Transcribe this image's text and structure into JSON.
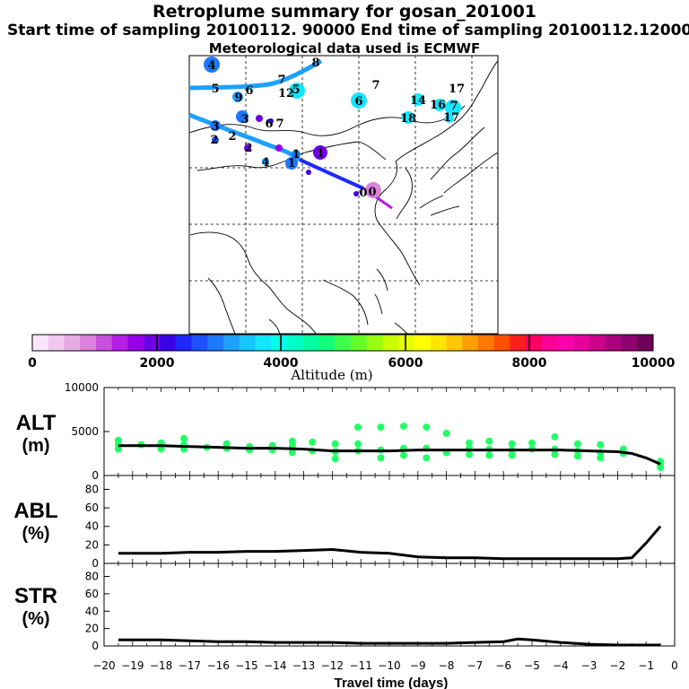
{
  "header": {
    "title": "Retroplume summary for gosan_201001",
    "times": "Start time of sampling 20100112. 90000     End time of sampling 20100112.120000",
    "met": "Meteorological data used is ECMWF"
  },
  "colors": {
    "scale": [
      "#fae6fa",
      "#f0c8f0",
      "#e6aae6",
      "#dc82dc",
      "#c850dc",
      "#b41ee6",
      "#9600e6",
      "#6e00e6",
      "#3c00e6",
      "#1e28ff",
      "#1e50ff",
      "#1e78ff",
      "#1ea0ff",
      "#14c8ff",
      "#14e6ff",
      "#00ffe6",
      "#00ffc8",
      "#00ffa0",
      "#14ff78",
      "#3cff50",
      "#64ff28",
      "#96ff14",
      "#c8ff00",
      "#e6ff00",
      "#ffff00",
      "#ffe600",
      "#ffc800",
      "#ffa000",
      "#ff7800",
      "#ff5000",
      "#ff1e1e",
      "#ff0064",
      "#ff0096",
      "#ff00aa",
      "#e6009b",
      "#c8008c",
      "#aa007d",
      "#8c006e",
      "#6e005a"
    ],
    "points": "#22ff66"
  },
  "map": {
    "labels": [
      {
        "t": "4",
        "c": "#1e78ff"
      },
      {
        "t": "8",
        "c": "#1ea0ff"
      },
      {
        "t": "5",
        "c": "#1e78ff"
      },
      {
        "t": "6",
        "c": "#1e78ff"
      },
      {
        "t": "7",
        "c": "#1ea0ff"
      },
      {
        "t": "12",
        "c": "#14e6ff"
      },
      {
        "t": "5",
        "c": "#14e6ff"
      },
      {
        "t": "9",
        "c": "#1ea0ff"
      },
      {
        "t": "6",
        "c": "#14e6ff"
      },
      {
        "t": "7",
        "c": "#14e6ff"
      },
      {
        "t": "14",
        "c": "#14e6ff"
      },
      {
        "t": "16",
        "c": "#14e6ff"
      },
      {
        "t": "17",
        "c": "#14e6ff"
      },
      {
        "t": "7",
        "c": "#14e6ff"
      },
      {
        "t": "18",
        "c": "#14e6ff"
      },
      {
        "t": "17",
        "c": "#14e6ff"
      },
      {
        "t": "3",
        "c": "#1e78ff"
      },
      {
        "t": "3",
        "c": "#1ea0ff"
      },
      {
        "t": "2",
        "c": "#1e78ff"
      },
      {
        "t": "2",
        "c": "#1e50ff"
      },
      {
        "t": "6",
        "c": "#1e50ff"
      },
      {
        "t": "7",
        "c": "#1e50ff"
      },
      {
        "t": "2",
        "c": "#3c00e6"
      },
      {
        "t": "4",
        "c": "#1e78ff"
      },
      {
        "t": "1",
        "c": "#6e00e6"
      },
      {
        "t": "1",
        "c": "#1e78ff"
      },
      {
        "t": "1",
        "c": "#1e50ff"
      },
      {
        "t": "0",
        "c": "#3c00e6"
      },
      {
        "t": "0",
        "c": "#c850dc"
      }
    ]
  },
  "colorbar": {
    "ticks": [
      "0",
      "2000",
      "4000",
      "6000",
      "8000",
      "10000"
    ],
    "label": "Altitude (m)"
  },
  "chart_data": [
    {
      "type": "line",
      "panel": "ALT",
      "ylabel_top": "ALT",
      "ylabel_bottom": "(m)",
      "ylim": [
        0,
        10000
      ],
      "yticks": [
        "10000",
        "5000",
        "0"
      ],
      "x": [
        -19.5,
        -18,
        -17,
        -16,
        -15,
        -14,
        -13,
        -12,
        -11,
        -10,
        -9,
        -8,
        -7,
        -6,
        -5,
        -4,
        -3,
        -2,
        -1.5,
        -1,
        -0.5
      ],
      "values": [
        3400,
        3400,
        3300,
        3200,
        3100,
        3100,
        3000,
        2800,
        2800,
        2800,
        2900,
        2900,
        2900,
        2900,
        2900,
        2900,
        2800,
        2700,
        2500,
        2000,
        1300
      ],
      "scatter": [
        {
          "x": -19.5,
          "y": [
            4000,
            3500,
            3000
          ]
        },
        {
          "x": -18.7,
          "y": [
            3500
          ]
        },
        {
          "x": -18,
          "y": [
            3700,
            3000
          ]
        },
        {
          "x": -17.2,
          "y": [
            4200,
            3500,
            3000
          ]
        },
        {
          "x": -16.4,
          "y": [
            3200
          ]
        },
        {
          "x": -15.7,
          "y": [
            3600,
            3100
          ]
        },
        {
          "x": -14.9,
          "y": [
            3300,
            2900
          ]
        },
        {
          "x": -14.1,
          "y": [
            3400,
            2900
          ]
        },
        {
          "x": -13.4,
          "y": [
            3900,
            3300,
            2600
          ]
        },
        {
          "x": -12.7,
          "y": [
            3800,
            2800
          ]
        },
        {
          "x": -11.9,
          "y": [
            3600,
            2700,
            1900
          ]
        },
        {
          "x": -11.1,
          "y": [
            5500,
            3600,
            2800
          ]
        },
        {
          "x": -10.3,
          "y": [
            5500,
            2900,
            2000
          ]
        },
        {
          "x": -9.5,
          "y": [
            5600,
            3100,
            2300
          ]
        },
        {
          "x": -8.7,
          "y": [
            5500,
            3100,
            2000
          ]
        },
        {
          "x": -8,
          "y": [
            4800,
            2600
          ]
        },
        {
          "x": -7.2,
          "y": [
            3700,
            3100,
            2400
          ]
        },
        {
          "x": -6.5,
          "y": [
            3900,
            3000,
            2300
          ]
        },
        {
          "x": -5.7,
          "y": [
            3600,
            2900,
            2300
          ]
        },
        {
          "x": -5,
          "y": [
            3700,
            3000
          ]
        },
        {
          "x": -4.2,
          "y": [
            4400,
            3000,
            2400
          ]
        },
        {
          "x": -3.4,
          "y": [
            3600,
            2800,
            2200
          ]
        },
        {
          "x": -2.6,
          "y": [
            3500,
            2600,
            2000
          ]
        },
        {
          "x": -1.8,
          "y": [
            3000,
            2500
          ]
        },
        {
          "x": -0.5,
          "y": [
            1600,
            1200,
            900
          ]
        }
      ]
    },
    {
      "type": "line",
      "panel": "ABL",
      "ylabel_top": "ABL",
      "ylabel_bottom": "(%)",
      "ylim": [
        0,
        95
      ],
      "yticks": [
        "80",
        "60",
        "40",
        "20",
        "0"
      ],
      "x": [
        -19.5,
        -18,
        -17,
        -16,
        -15,
        -14,
        -13,
        -12,
        -11,
        -10,
        -9,
        -8,
        -7,
        -6,
        -5,
        -4,
        -3,
        -2,
        -1.5,
        -1,
        -0.5
      ],
      "values": [
        11,
        11,
        12,
        12,
        13,
        13,
        14,
        15,
        12,
        11,
        7,
        6,
        6,
        5,
        5,
        5,
        5,
        5,
        6,
        22,
        40
      ]
    },
    {
      "type": "line",
      "panel": "STR",
      "ylabel_top": "STR",
      "ylabel_bottom": "(%)",
      "ylim": [
        0,
        95
      ],
      "yticks": [
        "80",
        "60",
        "40",
        "20",
        "0"
      ],
      "x": [
        -19.5,
        -18,
        -17,
        -16,
        -15,
        -14,
        -13,
        -12,
        -11,
        -10,
        -9,
        -8,
        -7,
        -6,
        -5.5,
        -5,
        -4,
        -3,
        -2,
        -1,
        -0.5
      ],
      "values": [
        7,
        7,
        6,
        5,
        5,
        4,
        4,
        4,
        3,
        3,
        3,
        3,
        4,
        5,
        8,
        7,
        4,
        2,
        1,
        1,
        1
      ],
      "xlabel": "Travel time (days)",
      "xticks": [
        "−20",
        "−19",
        "−18",
        "−17",
        "−16",
        "−15",
        "−14",
        "−13",
        "−12",
        "−11",
        "−10",
        "−9",
        "−8",
        "−7",
        "−6",
        "−5",
        "−4",
        "−3",
        "−2",
        "−1",
        "0"
      ]
    }
  ]
}
